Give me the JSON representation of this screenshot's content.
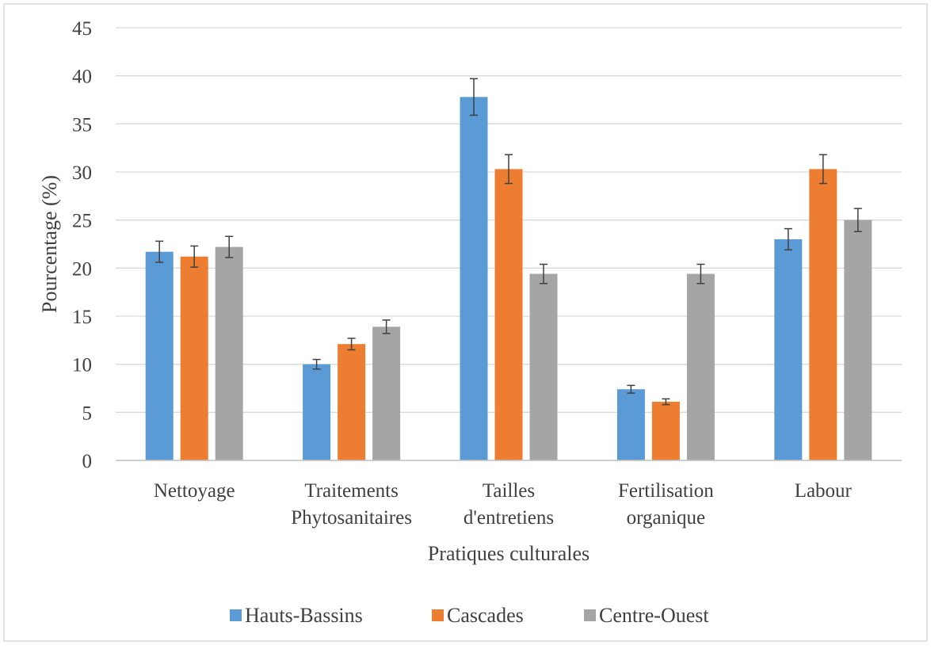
{
  "chart_data": {
    "type": "bar",
    "title": "",
    "xlabel": "Pratiques culturales",
    "ylabel": "Pourcentage (%)",
    "ylim": [
      0,
      45
    ],
    "ytick_step": 5,
    "yticks": [
      "0",
      "5",
      "10",
      "15",
      "20",
      "25",
      "30",
      "35",
      "40",
      "45"
    ],
    "grid": true,
    "legend_position": "bottom",
    "categories": [
      [
        "Nettoyage"
      ],
      [
        "Traitements",
        "Phytosanitaires"
      ],
      [
        "Tailles",
        "d'entretiens"
      ],
      [
        "Fertilisation",
        "organique"
      ],
      [
        "Labour"
      ]
    ],
    "series": [
      {
        "name": "Hauts-Bassins",
        "color": "#5B9BD5",
        "values": [
          21.7,
          10.0,
          37.8,
          7.4,
          23.0
        ],
        "errors": [
          1.1,
          0.5,
          1.9,
          0.4,
          1.1
        ]
      },
      {
        "name": "Cascades",
        "color": "#ED7D31",
        "values": [
          21.2,
          12.1,
          30.3,
          6.1,
          30.3
        ],
        "errors": [
          1.1,
          0.6,
          1.5,
          0.3,
          1.5
        ]
      },
      {
        "name": "Centre-Ouest",
        "color": "#A5A5A5",
        "values": [
          22.2,
          13.9,
          19.4,
          19.4,
          25.0
        ],
        "errors": [
          1.1,
          0.7,
          1.0,
          1.0,
          1.2
        ]
      }
    ]
  }
}
